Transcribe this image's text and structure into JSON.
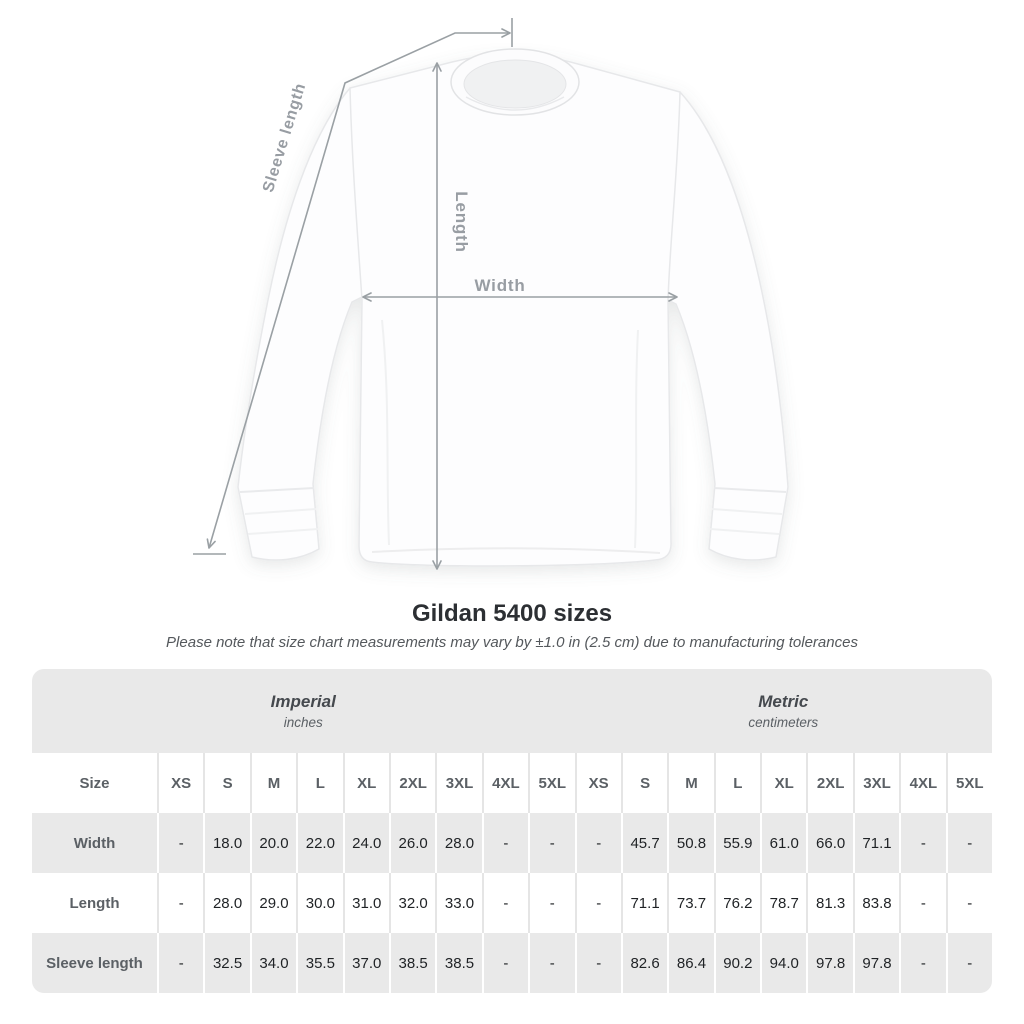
{
  "diagram": {
    "labels": {
      "sleeve_length": "Sleeve length",
      "length": "Length",
      "width": "Width"
    },
    "arrow_color": "#9aa0a4",
    "label_color": "#989da3"
  },
  "title": "Gildan 5400 sizes",
  "note": "Please note that size chart measurements may vary by ±1.0 in (2.5 cm) due to manufacturing tolerances",
  "table": {
    "size_header": "Size",
    "groups": [
      {
        "name": "Imperial",
        "unit": "inches",
        "span": 10
      },
      {
        "name": "Metric",
        "unit": "centimeters",
        "span": 9
      }
    ],
    "columns": [
      "XS",
      "S",
      "M",
      "L",
      "XL",
      "2XL",
      "3XL",
      "4XL",
      "5XL",
      "XS",
      "S",
      "M",
      "L",
      "XL",
      "2XL",
      "3XL",
      "4XL",
      "5XL"
    ],
    "rows": [
      {
        "label": "Width",
        "values": [
          "-",
          "18.0",
          "20.0",
          "22.0",
          "24.0",
          "26.0",
          "28.0",
          "-",
          "-",
          "-",
          "45.7",
          "50.8",
          "55.9",
          "61.0",
          "66.0",
          "71.1",
          "-",
          "-"
        ]
      },
      {
        "label": "Length",
        "values": [
          "-",
          "28.0",
          "29.0",
          "30.0",
          "31.0",
          "32.0",
          "33.0",
          "-",
          "-",
          "-",
          "71.1",
          "73.7",
          "76.2",
          "78.7",
          "81.3",
          "83.8",
          "-",
          "-"
        ]
      },
      {
        "label": "Sleeve length",
        "values": [
          "-",
          "32.5",
          "34.0",
          "35.5",
          "37.0",
          "38.5",
          "38.5",
          "-",
          "-",
          "-",
          "82.6",
          "86.4",
          "90.2",
          "94.0",
          "97.8",
          "97.8",
          "-",
          "-"
        ]
      }
    ]
  },
  "colors": {
    "table_band": "#e9e9e9",
    "row_stripe": "#e9e9e9",
    "header_text": "#5b6065",
    "value_text": "#1f2225",
    "title_text": "#2c2f33"
  }
}
